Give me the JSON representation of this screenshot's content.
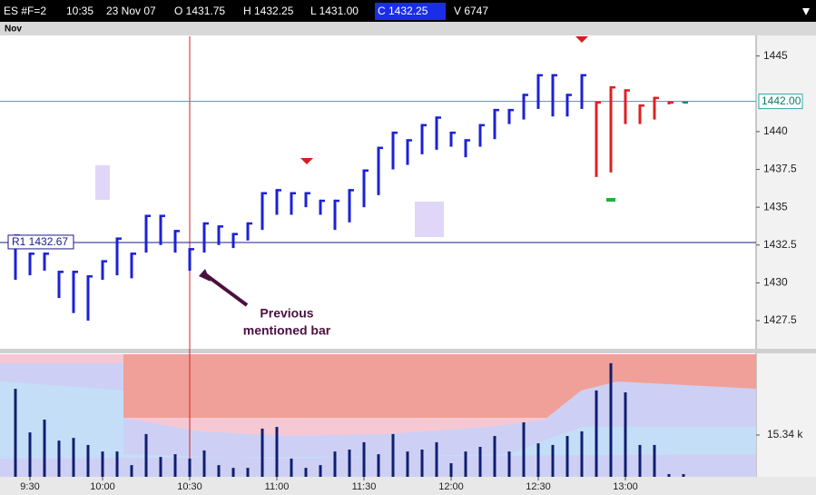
{
  "header": {
    "symbol": "ES #F=2",
    "time": "10:35",
    "date": "23 Nov 07",
    "open": "O 1431.75",
    "high": "H 1432.25",
    "low": "L 1431.00",
    "close": "C 1432.25",
    "volume": "V 6747"
  },
  "panel_label": "Nov",
  "chart_data": [
    {
      "type": "range-bar",
      "categories": [
        null,
        "9:30",
        null,
        null,
        null,
        null,
        "10:00",
        null,
        null,
        null,
        null,
        null,
        "10:30",
        null,
        null,
        null,
        null,
        null,
        "11:00",
        null,
        null,
        null,
        null,
        null,
        "11:30",
        null,
        null,
        null,
        null,
        null,
        "12:00",
        null,
        null,
        null,
        null,
        null,
        "12:30",
        null,
        null,
        null,
        null,
        null,
        "13:00",
        null,
        null,
        null,
        null
      ],
      "high": [
        1433.2,
        1432,
        1432,
        1430.8,
        1430.8,
        1430.5,
        1431.5,
        1433,
        1432,
        1434.5,
        1434.5,
        1433.5,
        1432.3,
        1434,
        1433.8,
        1433.3,
        1434,
        1436,
        1436.2,
        1436,
        1436,
        1435.5,
        1435.5,
        1436.2,
        1437.5,
        1439,
        1440,
        1439.5,
        1440.5,
        1441,
        1440,
        1439.5,
        1440.5,
        1441.5,
        1441.5,
        1442.5,
        1443.8,
        1443.8,
        1442.5,
        1443.8,
        1442,
        1443,
        1442.8,
        1441.8,
        1442.3,
        1442,
        1442
      ],
      "low": [
        1430.2,
        1430.5,
        1430.8,
        1429,
        1428,
        1427.5,
        1430.2,
        1430.5,
        1430.3,
        1432,
        1432.5,
        1432,
        1430.8,
        1432,
        1432.5,
        1432.3,
        1432.8,
        1433.5,
        1434.5,
        1434.5,
        1435,
        1434.5,
        1433.5,
        1434,
        1435,
        1435.8,
        1437.5,
        1437.8,
        1438.5,
        1438.8,
        1439,
        1438.3,
        1439,
        1439.5,
        1440.5,
        1440.8,
        1441.5,
        1441,
        1441,
        1441.5,
        1437,
        1437.3,
        1440.5,
        1440.5,
        1440.8,
        1441.8,
        1441.9
      ],
      "colors": [
        "#1b22d6",
        "#1b22d6",
        "#1b22d6",
        "#1b22d6",
        "#1b22d6",
        "#1b22d6",
        "#1b22d6",
        "#1b22d6",
        "#1b22d6",
        "#1b22d6",
        "#1b22d6",
        "#1b22d6",
        "#1b22d6",
        "#1b22d6",
        "#1b22d6",
        "#1b22d6",
        "#1b22d6",
        "#1b22d6",
        "#1b22d6",
        "#1b22d6",
        "#1b22d6",
        "#1b22d6",
        "#1b22d6",
        "#1b22d6",
        "#1b22d6",
        "#1b22d6",
        "#1b22d6",
        "#1b22d6",
        "#1b22d6",
        "#1b22d6",
        "#1b22d6",
        "#1b22d6",
        "#1b22d6",
        "#1b22d6",
        "#1b22d6",
        "#1b22d6",
        "#1b22d6",
        "#1b22d6",
        "#1b22d6",
        "#1b22d6",
        "#e02020",
        "#e02020",
        "#e02020",
        "#e02020",
        "#e02020",
        "#e02020",
        "#1a8a8a"
      ],
      "ylim": [
        1425.7,
        1446.3
      ],
      "yticks": [
        1427.5,
        1430,
        1432.5,
        1435,
        1437.5,
        1440,
        1445
      ],
      "reference_lines": [
        {
          "value": 1432.67,
          "label": "R1 1432.67",
          "color": "#1a1a8c"
        },
        {
          "value": 1442,
          "label": "1442.00",
          "color": "#2aa8a8"
        }
      ],
      "annotation": [
        "Previous",
        "mentioned bar"
      ]
    },
    {
      "type": "bar",
      "values": [
        32300,
        16300,
        21000,
        13300,
        14300,
        11700,
        9300,
        9300,
        4300,
        15700,
        7300,
        8300,
        6700,
        9700,
        4300,
        3300,
        3300,
        17700,
        18300,
        6700,
        3300,
        4300,
        9300,
        10000,
        12700,
        8300,
        15700,
        9300,
        10000,
        12700,
        5000,
        9300,
        11000,
        15000,
        9300,
        20000,
        12300,
        11700,
        15000,
        16700,
        31700,
        41700,
        31000,
        11700,
        11700,
        1000,
        1000
      ],
      "color": "#101e70",
      "ylim": [
        0,
        45000
      ],
      "yticks": [
        {
          "value": 15340,
          "label": "15.34 k"
        }
      ]
    }
  ]
}
